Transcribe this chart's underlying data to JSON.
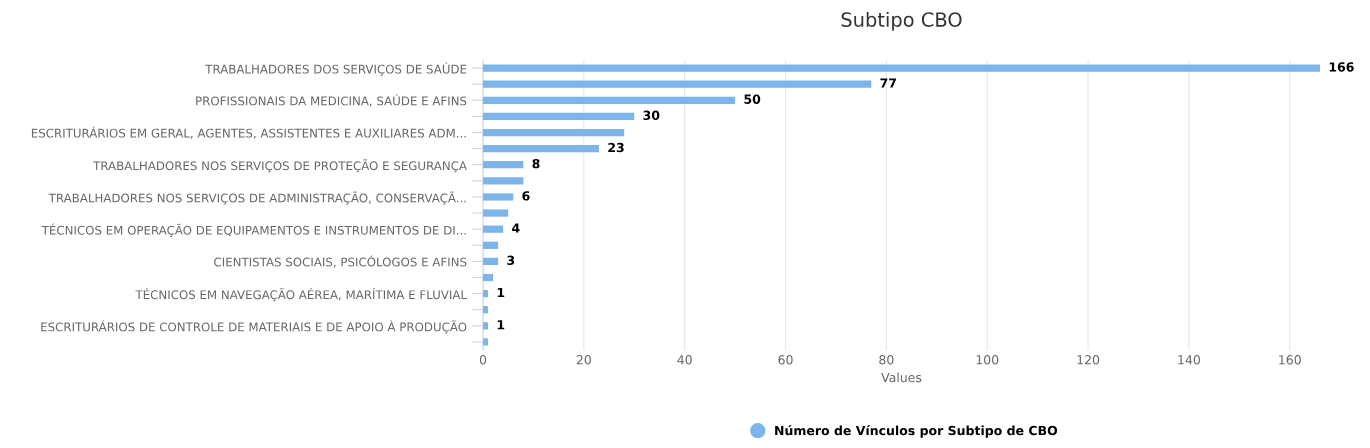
{
  "chart_data": {
    "type": "bar",
    "orientation": "horizontal",
    "title": "Subtipo CBO",
    "xlabel": "Values",
    "categories": [
      "TRABALHADORES DOS SERVIÇOS DE SAÚDE",
      null,
      "PROFISSIONAIS DA MEDICINA, SAÚDE E AFINS",
      null,
      "ESCRITURÁRIOS EM GERAL, AGENTES, ASSISTENTES E AUXILIARES ADM...",
      null,
      "TRABALHADORES NOS SERVIÇOS DE PROTEÇÃO E SEGURANÇA",
      null,
      "TRABALHADORES NOS SERVIÇOS DE ADMINISTRAÇÃO, CONSERVAÇÃ...",
      null,
      "TÉCNICOS EM OPERAÇÃO DE EQUIPAMENTOS E INSTRUMENTOS DE DI...",
      null,
      "CIENTISTAS SOCIAIS, PSICÓLOGOS E AFINS",
      null,
      "TÉCNICOS EM NAVEGAÇÃO AÉREA, MARÍTIMA E FLUVIAL",
      null,
      "ESCRITURÁRIOS DE CONTROLE DE MATERIAIS E DE APOIO À PRODUÇÃO",
      null
    ],
    "series": [
      {
        "name": "Número de Vínculos por Subtipo de CBO",
        "color": "#7cb5ec",
        "values": [
          166,
          77,
          50,
          30,
          28,
          23,
          8,
          8,
          6,
          5,
          4,
          3,
          3,
          2,
          1,
          1,
          1,
          1
        ],
        "value_labels": [
          "166",
          "77",
          "50",
          "30",
          null,
          "23",
          "8",
          null,
          "6",
          null,
          "4",
          null,
          "3",
          null,
          "1",
          null,
          "1",
          null
        ]
      }
    ],
    "xlim": [
      0,
      166
    ],
    "xticks": [
      0,
      20,
      40,
      60,
      80,
      100,
      120,
      140,
      160
    ],
    "grid": "x",
    "legend": "bottom",
    "marker": "circle"
  }
}
